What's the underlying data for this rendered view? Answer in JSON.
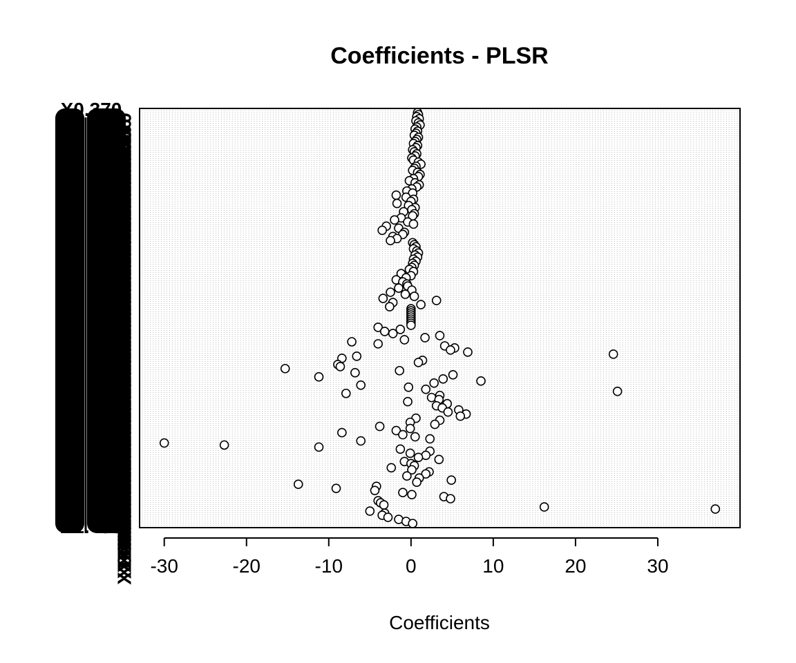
{
  "chart_data": {
    "type": "scatter",
    "title": "Coefficients -  PLSR",
    "xlabel": "Coefficients",
    "ylabel": "",
    "xlim": [
      -33,
      40
    ],
    "x_ticks": [
      -30,
      -20,
      -10,
      0,
      10,
      20,
      30
    ],
    "x_tick_labels": [
      "-30",
      "-20",
      "-10",
      "0",
      "10",
      "20",
      "30"
    ],
    "grid": true,
    "y_tick_labels_overlapping": [
      "X0.370",
      "X1.430"
    ],
    "n_variables": 200,
    "series": [
      {
        "name": "coefficients",
        "values": [
          0.8,
          0.9,
          0.7,
          1.0,
          0.6,
          0.9,
          1.1,
          0.7,
          0.5,
          0.8,
          0.6,
          0.4,
          0.9,
          0.7,
          0.5,
          0.3,
          0.8,
          0.6,
          0.2,
          0.4,
          0.7,
          0.5,
          0.1,
          0.3,
          0.9,
          1.2,
          0.6,
          0.4,
          0.2,
          0.8,
          1.1,
          0.9,
          0.3,
          -0.2,
          0.5,
          1.0,
          0.7,
          0.1,
          -0.5,
          0.2,
          -1.8,
          -0.6,
          0.3,
          0.0,
          -1.7,
          -0.3,
          0.5,
          0.1,
          -0.9,
          0.4,
          0.2,
          -1.2,
          -2.0,
          -0.4,
          0.3,
          -3.0,
          -1.5,
          -3.5,
          -0.8,
          -1.0,
          -2.2,
          -1.7,
          -2.5,
          0.2,
          0.4,
          0.6,
          0.3,
          0.7,
          0.9,
          0.5,
          0.8,
          0.3,
          0.6,
          0.2,
          0.4,
          0.1,
          -0.2,
          0.3,
          -1.2,
          0.0,
          -0.6,
          -1.8,
          -1.0,
          -0.5,
          -0.4,
          -1.5,
          0.1,
          -2.5,
          -0.7,
          0.4,
          -3.4,
          3.1,
          -2.2,
          1.2,
          -2.6,
          0.0,
          0.0,
          0.0,
          0.0,
          0.0,
          0.0,
          0.0,
          0.0,
          0.0,
          -4.0,
          -1.3,
          -3.2,
          -2.2,
          3.5,
          1.7,
          -0.8,
          -7.2,
          -4.0,
          4.1,
          5.3,
          4.8,
          6.9,
          24.6,
          -6.6,
          -8.4,
          1.4,
          0.9,
          -8.9,
          -8.6,
          -15.3,
          -1.4,
          -6.8,
          5.1,
          -11.2,
          3.9,
          8.5,
          2.8,
          -6.1,
          -0.3,
          1.8,
          25.1,
          -7.9,
          3.5,
          2.5,
          3.4,
          -0.4,
          4.4,
          3.1,
          3.8,
          5.8,
          4.5,
          6.7,
          6.0,
          0.6,
          3.5,
          -0.1,
          2.9,
          -3.8,
          -0.1,
          -1.8,
          -8.4,
          -1.0,
          0.5,
          2.3,
          -6.1,
          -30.0,
          -22.7,
          -11.2,
          -1.3,
          2.3,
          -0.1,
          1.8,
          0.9,
          3.4,
          -0.8,
          0.0,
          0.4,
          -2.4,
          0.1,
          2.2,
          1.8,
          -0.5,
          1.0,
          4.9,
          0.7,
          -13.7,
          -4.2,
          -9.1,
          -4.4,
          -1.0,
          0.1,
          4.0,
          4.8,
          -4.0,
          -3.7,
          -3.3,
          16.2,
          37.0,
          -5.0,
          -3.2,
          -3.5,
          -2.8,
          -1.5,
          -0.6,
          0.2
        ]
      }
    ]
  }
}
